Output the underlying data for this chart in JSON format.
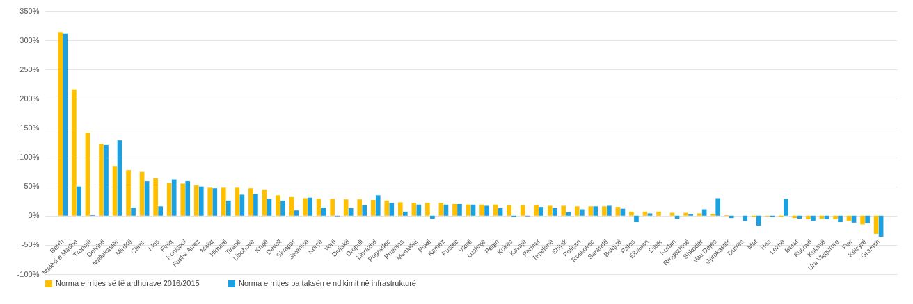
{
  "chart_data": {
    "type": "bar",
    "categories": [
      "Belsh",
      "Malësi e Madhe",
      "Tropojë",
      "Delvinë",
      "Mallakastër",
      "Mirditë",
      "Cërrik",
      "Klos",
      "Finiq",
      "Konispol",
      "Fushë Arrëz",
      "Maliq",
      "Himarë",
      "Tiranë",
      "Libohovë",
      "Krujë",
      "Devoll",
      "Skrapar",
      "Selenicë",
      "Korçë",
      "Vorë",
      "Divjakë",
      "Dropull",
      "Librazhd",
      "Pogradec",
      "Prrenjas",
      "Memaliaj",
      "Pukë",
      "Kamëz",
      "Pustec",
      "Vlorë",
      "Lushnjë",
      "Peqin",
      "Kukës",
      "Kavajë",
      "Përmet",
      "Tepelenë",
      "Shijak",
      "Poliçan",
      "Roskovec",
      "Sarandë",
      "Bulqizë",
      "Patos",
      "Elbasan",
      "Dibër",
      "Kurbin",
      "Rrogozhinë",
      "Shkodër",
      "Vau Dejës",
      "Gjirokastër",
      "Durrës",
      "Mat",
      "Has",
      "Lezhë",
      "Berat",
      "Kuçovë",
      "Kolonjë",
      "Ura Vajgurore",
      "Fier",
      "Këlcyrë",
      "Gramsh"
    ],
    "series": [
      {
        "name": "Norma e rritjes së të ardhurave 2016/2015",
        "color": "#ffc000",
        "values": [
          314,
          216,
          142,
          123,
          85,
          78,
          75,
          64,
          56,
          55,
          52,
          48,
          48,
          48,
          47,
          44,
          35,
          32,
          30,
          29,
          29,
          28,
          28,
          27,
          26,
          23,
          22,
          22,
          22,
          20,
          19,
          19,
          19,
          18,
          18,
          18,
          17,
          17,
          16,
          16,
          16,
          15,
          7,
          7,
          7,
          5,
          5,
          4,
          3,
          1,
          0,
          -2,
          -1,
          -2,
          -4,
          -6,
          -5,
          -6,
          -9,
          -15,
          -31
        ]
      },
      {
        "name": "Norma e rritjes pa taksën e ndikimit në infrastrukturë",
        "color": "#1ba1e2",
        "values": [
          311,
          50,
          1,
          121,
          129,
          14,
          59,
          16,
          62,
          59,
          50,
          47,
          26,
          36,
          37,
          29,
          26,
          9,
          31,
          14,
          -1,
          13,
          18,
          35,
          22,
          7,
          19,
          -5,
          19,
          20,
          19,
          17,
          13,
          -2,
          -1,
          15,
          13,
          6,
          11,
          16,
          17,
          12,
          -11,
          4,
          null,
          -5,
          3,
          11,
          30,
          -4,
          -9,
          -17,
          -2,
          29,
          -5,
          -9,
          -6,
          -11,
          -12,
          -13,
          -36
        ]
      }
    ],
    "ylim": [
      -100,
      350
    ],
    "yticks": [
      {
        "value": -100,
        "label": "-100%"
      },
      {
        "value": -50,
        "label": "-50%"
      },
      {
        "value": 0,
        "label": "0%"
      },
      {
        "value": 50,
        "label": "50%"
      },
      {
        "value": 100,
        "label": "100%"
      },
      {
        "value": 150,
        "label": "150%"
      },
      {
        "value": 200,
        "label": "200%"
      },
      {
        "value": 250,
        "label": "250%"
      },
      {
        "value": 300,
        "label": "300%"
      },
      {
        "value": 350,
        "label": "350%"
      }
    ],
    "grid": "y",
    "legend": "bottom"
  }
}
